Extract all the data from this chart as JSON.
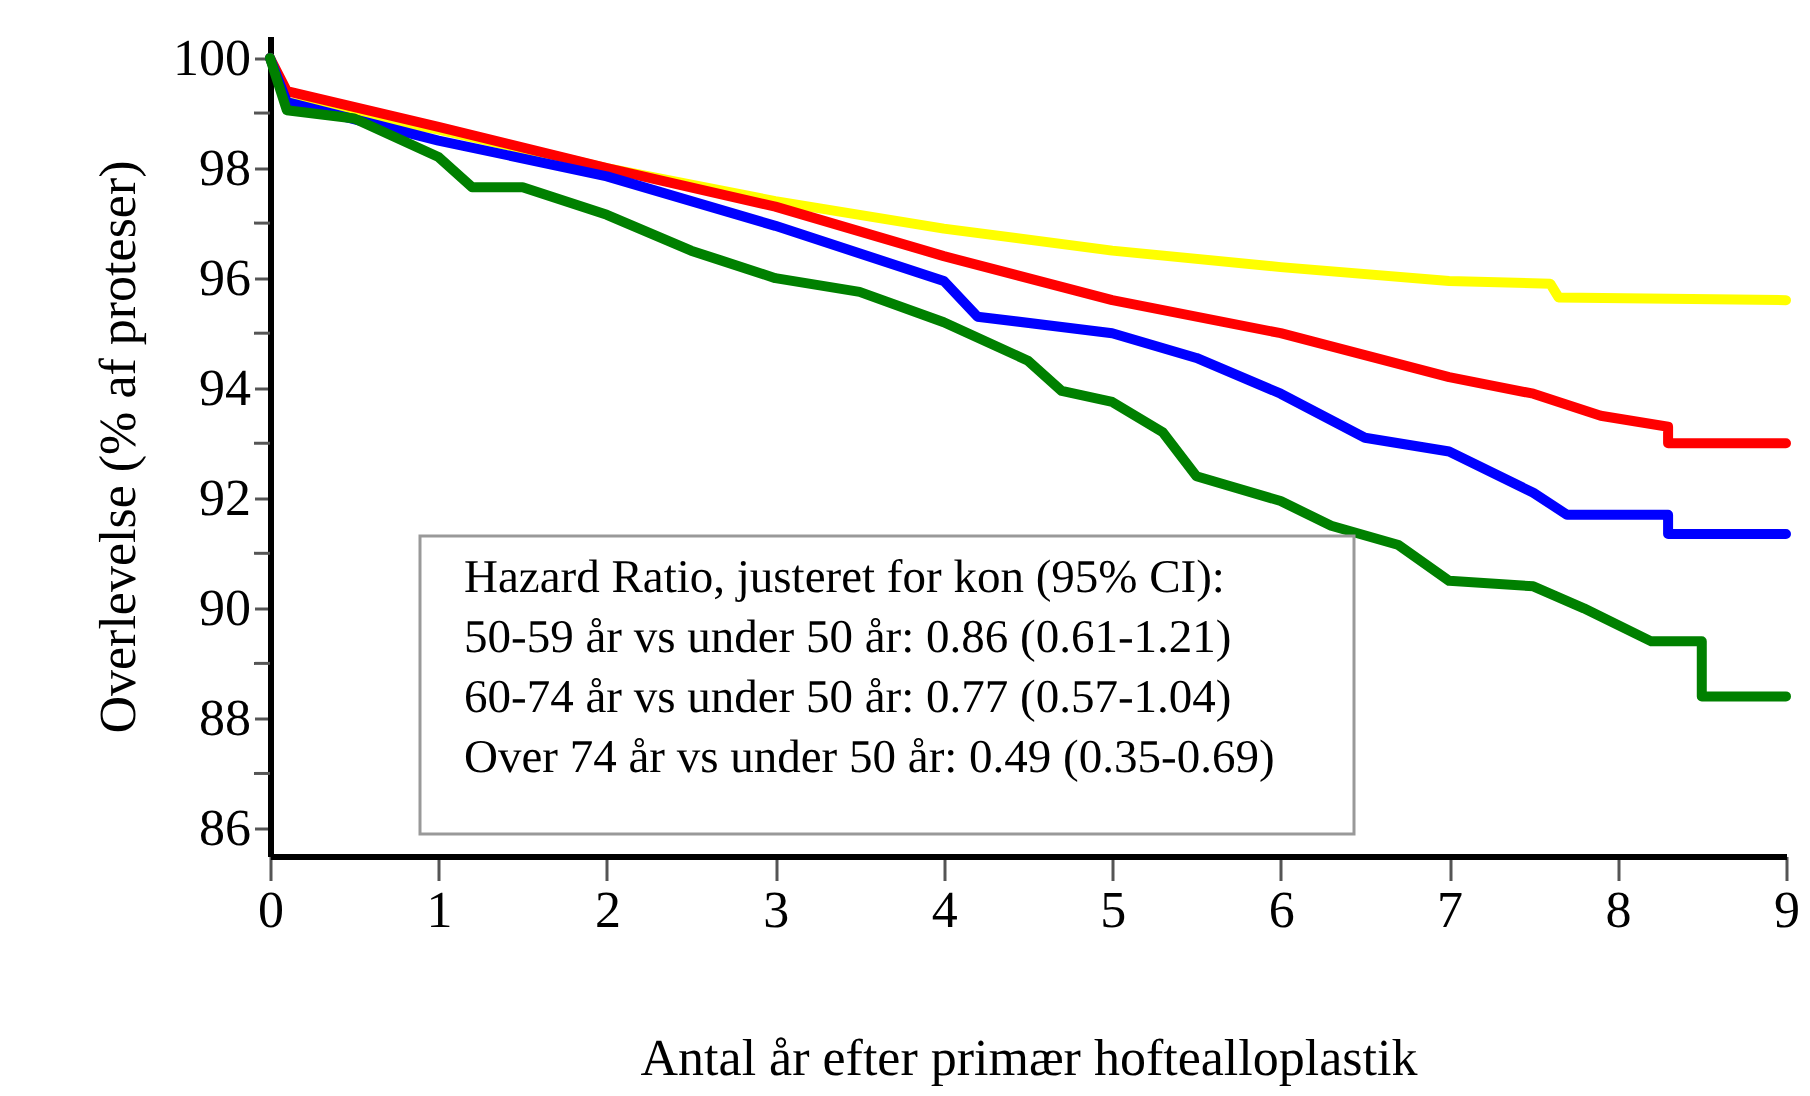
{
  "chart_data": {
    "type": "line",
    "xlabel": "Antal år efter primær hoftealloplastik",
    "ylabel": "Overlevelse (% af proteser)",
    "xlim": [
      0,
      9
    ],
    "ylim": [
      85.5,
      100.4
    ],
    "xticks": [
      0,
      1,
      2,
      3,
      4,
      5,
      6,
      7,
      8,
      9
    ],
    "yticks": [
      86,
      {
        "value": 87,
        "label": null
      },
      88,
      {
        "value": 89,
        "label": null
      },
      90,
      {
        "value": 91,
        "label": null
      },
      92,
      {
        "value": 93,
        "label": null
      },
      94,
      {
        "value": 95,
        "label": null
      },
      96,
      {
        "value": 97,
        "label": null
      },
      98,
      {
        "value": 99,
        "label": null
      },
      100
    ],
    "grid": false,
    "line_style": "solid",
    "marker": "none",
    "annotations": [
      "Hazard Ratio, justeret for kon (95% CI):",
      "50-59 år vs under 50 år: 0.86 (0.61-1.21)",
      "60-74 år vs under 50 år: 0.77 (0.57-1.04)",
      "Over 74 år vs under 50 år: 0.49 (0.35-0.69)"
    ],
    "series": [
      {
        "color": "#ffff00",
        "x": [
          0,
          0.1,
          1,
          2,
          3,
          4,
          5,
          6,
          7,
          7.6,
          7.65,
          9
        ],
        "values": [
          100,
          99.2,
          98.7,
          98.0,
          97.4,
          96.9,
          96.5,
          96.2,
          95.95,
          95.9,
          95.65,
          95.6
        ]
      },
      {
        "color": "#ff0000",
        "x": [
          0,
          0.1,
          1,
          2,
          3,
          4,
          5,
          6,
          6.5,
          7,
          7.5,
          7.9,
          8.3,
          8.3,
          9
        ],
        "values": [
          100,
          99.4,
          98.75,
          98.0,
          97.3,
          96.4,
          95.6,
          95.0,
          94.6,
          94.2,
          93.9,
          93.5,
          93.3,
          93.0,
          93.0
        ]
      },
      {
        "color": "#0000ff",
        "x": [
          0,
          0.1,
          1,
          2,
          3,
          4,
          4.2,
          5,
          5.5,
          6,
          6.5,
          7,
          7.5,
          7.7,
          8.3,
          8.3,
          9
        ],
        "values": [
          100,
          99.2,
          98.5,
          97.85,
          96.95,
          95.95,
          95.3,
          95.0,
          94.55,
          93.9,
          93.1,
          92.85,
          92.1,
          91.7,
          91.7,
          91.35,
          91.35
        ]
      },
      {
        "color": "#008000",
        "x": [
          0,
          0.1,
          0.5,
          1,
          1.2,
          1.5,
          2,
          2.5,
          3,
          3.5,
          4,
          4.5,
          4.7,
          5,
          5.3,
          5.5,
          6,
          6.3,
          6.7,
          7,
          7.5,
          7.8,
          8.2,
          8.5,
          8.5,
          9
        ],
        "values": [
          100,
          99.05,
          98.9,
          98.2,
          97.65,
          97.65,
          97.15,
          96.5,
          96.0,
          95.75,
          95.2,
          94.5,
          93.95,
          93.75,
          93.2,
          92.4,
          91.95,
          91.5,
          91.15,
          90.5,
          90.4,
          90.0,
          89.4,
          89.4,
          88.4,
          88.4
        ]
      }
    ]
  }
}
